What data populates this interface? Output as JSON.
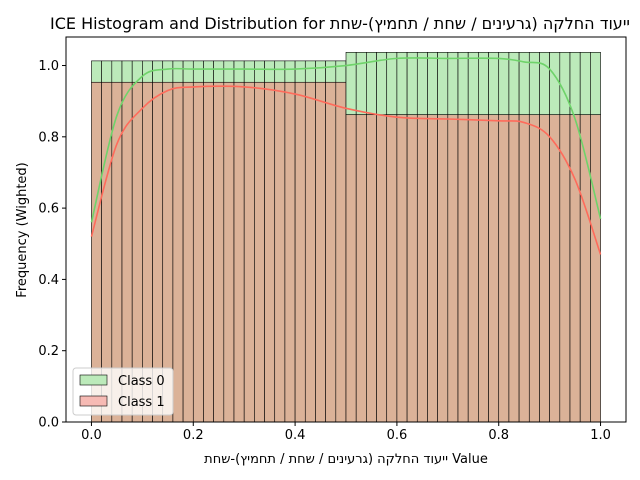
{
  "chart_data": {
    "type": "bar",
    "title": "ICE Histogram and Distribution for ייעוד החלקה (גרעינים / שחת / תחמיץ)-שחת",
    "xlabel": "ייעוד החלקה (גרעינים / שחת / תחמיץ)-שחת Value",
    "ylabel": "Frequency (Wighted)",
    "xlim": [
      -0.05,
      1.05
    ],
    "ylim": [
      0,
      1.08
    ],
    "xticks": [
      0.0,
      0.2,
      0.4,
      0.6,
      0.8,
      1.0
    ],
    "yticks": [
      0.0,
      0.2,
      0.4,
      0.6,
      0.8,
      1.0
    ],
    "bin_edges_step": 0.02,
    "bins_range": [
      0.0,
      1.0
    ],
    "legend_position": "lower-left",
    "grid": false,
    "series": [
      {
        "name": "Class 0",
        "color": "#90dc8c",
        "kde_color": "#6fd36a",
        "histogram": {
          "segments": [
            {
              "x_start": 0.0,
              "x_end": 0.5,
              "value": 1.013
            },
            {
              "x_start": 0.5,
              "x_end": 1.0,
              "value": 1.037
            }
          ]
        },
        "kde": {
          "x": [
            0.0,
            0.05,
            0.1,
            0.15,
            0.2,
            0.3,
            0.4,
            0.5,
            0.6,
            0.7,
            0.8,
            0.85,
            0.9,
            0.95,
            1.0
          ],
          "y": [
            0.56,
            0.86,
            0.97,
            0.99,
            0.99,
            0.99,
            0.99,
            1.0,
            1.02,
            1.02,
            1.02,
            1.01,
            0.99,
            0.85,
            0.57
          ]
        }
      },
      {
        "name": "Class 1",
        "color": "#f08c82",
        "kde_color": "#ff6b5b",
        "histogram": {
          "segments": [
            {
              "x_start": 0.0,
              "x_end": 0.5,
              "value": 0.953
            },
            {
              "x_start": 0.5,
              "x_end": 1.0,
              "value": 0.862
            }
          ]
        },
        "kde": {
          "x": [
            0.0,
            0.05,
            0.1,
            0.15,
            0.2,
            0.3,
            0.4,
            0.5,
            0.6,
            0.7,
            0.8,
            0.85,
            0.9,
            0.95,
            1.0
          ],
          "y": [
            0.52,
            0.78,
            0.88,
            0.93,
            0.94,
            0.94,
            0.92,
            0.88,
            0.855,
            0.85,
            0.845,
            0.84,
            0.8,
            0.68,
            0.47
          ]
        }
      }
    ]
  }
}
